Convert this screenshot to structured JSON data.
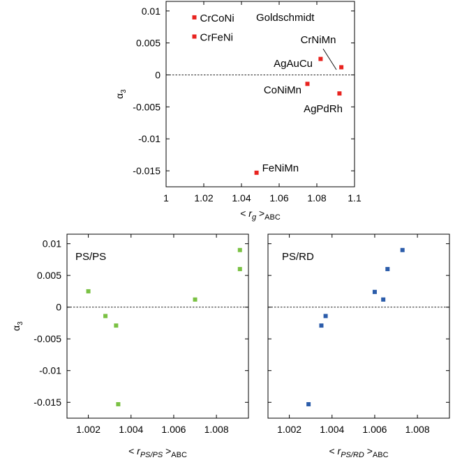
{
  "chart_data": [
    {
      "type": "scatter",
      "title": "Goldschmidt",
      "xlabel": {
        "pre": "< ",
        "var": "r",
        "sub": "g",
        "post": " >",
        "sub2": "ABC"
      },
      "ylabel": {
        "var": "α",
        "sub": "3"
      },
      "xlim": [
        1.0,
        1.1
      ],
      "ylim": [
        -0.0175,
        0.0115
      ],
      "xticks": [
        1,
        1.02,
        1.04,
        1.06,
        1.08,
        1.1
      ],
      "xtick_labels": [
        "1",
        "1.02",
        "1.04",
        "1.06",
        "1.08",
        "1.1"
      ],
      "yticks": [
        0.01,
        0.005,
        0,
        -0.005,
        -0.01,
        -0.015
      ],
      "ytick_labels": [
        "0.01",
        "0.005",
        "0",
        "-0.005",
        "-0.01",
        "-0.015"
      ],
      "zero_line": true,
      "color": "#e8231f",
      "points": [
        {
          "label": "CrCoNi",
          "x": 1.015,
          "y": 0.009
        },
        {
          "label": "CrFeNi",
          "x": 1.015,
          "y": 0.006
        },
        {
          "label": "CrNiMn",
          "x": 1.093,
          "y": 0.0012
        },
        {
          "label": "AgAuCu",
          "x": 1.082,
          "y": 0.0025
        },
        {
          "label": "CoNiMn",
          "x": 1.075,
          "y": -0.0014
        },
        {
          "label": "AgPdRh",
          "x": 1.092,
          "y": -0.0029
        },
        {
          "label": "FeNiMn",
          "x": 1.048,
          "y": -0.0153
        }
      ]
    },
    {
      "type": "scatter",
      "title": "PS/PS",
      "xlabel": {
        "pre": "< ",
        "var": "r",
        "sub": "PS/PS",
        "post": " >",
        "sub2": "ABC"
      },
      "ylabel": {
        "var": "α",
        "sub": "3"
      },
      "xlim": [
        1.001,
        1.0095
      ],
      "ylim": [
        -0.0175,
        0.0115
      ],
      "xticks": [
        1.002,
        1.004,
        1.006,
        1.008
      ],
      "xtick_labels": [
        "1.002",
        "1.004",
        "1.006",
        "1.008"
      ],
      "yticks": [
        0.01,
        0.005,
        0,
        -0.005,
        -0.01,
        -0.015
      ],
      "ytick_labels": [
        "0.01",
        "0.005",
        "0",
        "-0.005",
        "-0.01",
        "-0.015"
      ],
      "zero_line": true,
      "color": "#7ac143",
      "points": [
        {
          "x": 1.002,
          "y": 0.0025
        },
        {
          "x": 1.0028,
          "y": -0.0014
        },
        {
          "x": 1.0033,
          "y": -0.0029
        },
        {
          "x": 1.0034,
          "y": -0.0153
        },
        {
          "x": 1.007,
          "y": 0.0012
        },
        {
          "x": 1.0091,
          "y": 0.006
        },
        {
          "x": 1.0091,
          "y": 0.009
        }
      ]
    },
    {
      "type": "scatter",
      "title": "PS/RD",
      "xlabel": {
        "pre": "< ",
        "var": "r",
        "sub": "PS/RD",
        "post": " >",
        "sub2": "ABC"
      },
      "ylabel": {
        "var": "",
        "sub": ""
      },
      "xlim": [
        1.001,
        1.0095
      ],
      "ylim": [
        -0.0175,
        0.0115
      ],
      "xticks": [
        1.002,
        1.004,
        1.006,
        1.008
      ],
      "xtick_labels": [
        "1.002",
        "1.004",
        "1.006",
        "1.008"
      ],
      "yticks": [
        0.01,
        0.005,
        0,
        -0.005,
        -0.01,
        -0.015
      ],
      "ytick_labels": [],
      "zero_line": true,
      "color": "#2b5caa",
      "points": [
        {
          "x": 1.0029,
          "y": -0.0153
        },
        {
          "x": 1.0035,
          "y": -0.0029
        },
        {
          "x": 1.0037,
          "y": -0.0014
        },
        {
          "x": 1.006,
          "y": 0.0024
        },
        {
          "x": 1.0064,
          "y": 0.0012
        },
        {
          "x": 1.0066,
          "y": 0.006
        },
        {
          "x": 1.0073,
          "y": 0.009
        }
      ]
    }
  ]
}
